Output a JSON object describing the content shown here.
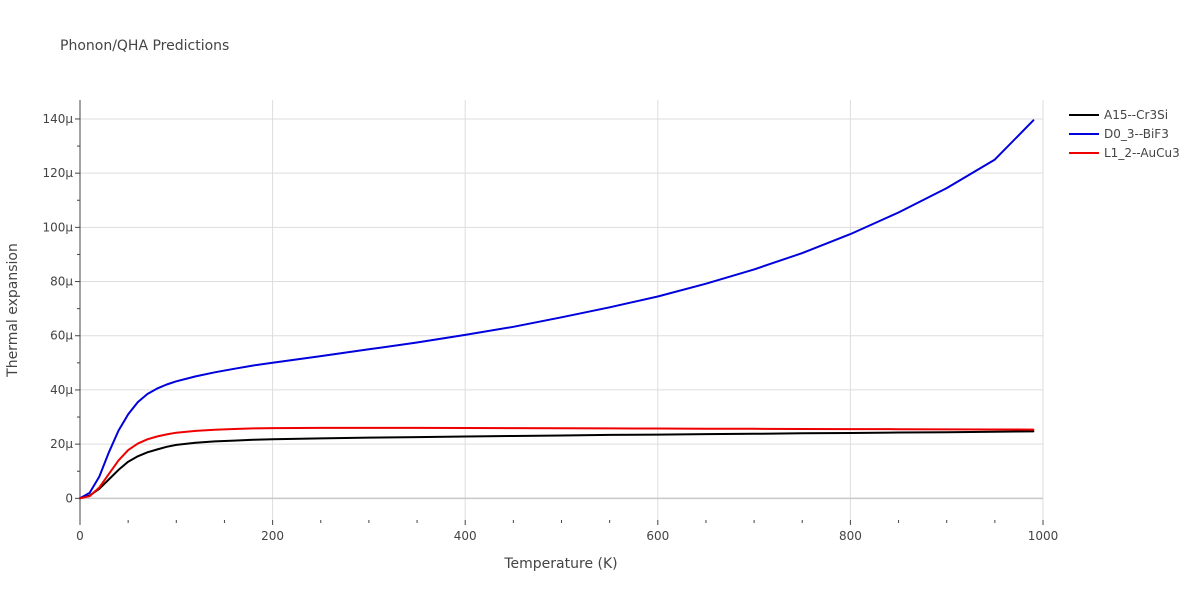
{
  "chart_data": {
    "type": "line",
    "title": "Phonon/QHA Predictions",
    "xlabel": "Temperature (K)",
    "ylabel": "Thermal expansion",
    "xlim": [
      0,
      1000
    ],
    "ylim": [
      -8,
      147
    ],
    "x_ticks": [
      0,
      200,
      400,
      600,
      800,
      1000
    ],
    "x_tick_labels": [
      "0",
      "200",
      "400",
      "600",
      "800",
      "1000"
    ],
    "y_ticks": [
      0,
      20,
      40,
      60,
      80,
      100,
      120,
      140
    ],
    "y_tick_labels": [
      "0",
      "20μ",
      "40μ",
      "60μ",
      "80μ",
      "100μ",
      "120μ",
      "140μ"
    ],
    "grid": true,
    "legend_position": "top-right",
    "series": [
      {
        "name": "A15--Cr3Si",
        "color": "#000000",
        "x": [
          0,
          10,
          20,
          30,
          40,
          50,
          60,
          70,
          80,
          90,
          100,
          120,
          140,
          160,
          180,
          200,
          250,
          300,
          350,
          400,
          450,
          500,
          550,
          600,
          650,
          700,
          750,
          800,
          850,
          900,
          950,
          990
        ],
        "y": [
          0,
          1,
          3.5,
          7,
          10.5,
          13.5,
          15.5,
          17,
          18,
          19,
          19.7,
          20.5,
          21,
          21.3,
          21.6,
          21.8,
          22.1,
          22.4,
          22.6,
          22.8,
          23,
          23.2,
          23.4,
          23.5,
          23.7,
          23.8,
          24,
          24.1,
          24.3,
          24.4,
          24.6,
          24.7
        ]
      },
      {
        "name": "D0_3--BiF3",
        "color": "#0000dd",
        "x": [
          0,
          10,
          20,
          30,
          40,
          50,
          60,
          70,
          80,
          90,
          100,
          120,
          140,
          160,
          180,
          200,
          250,
          300,
          350,
          400,
          450,
          500,
          550,
          600,
          650,
          700,
          750,
          800,
          850,
          900,
          950,
          990
        ],
        "y": [
          0,
          2,
          8,
          17,
          25,
          31,
          35.5,
          38.5,
          40.5,
          42,
          43.2,
          45,
          46.5,
          47.8,
          49,
          50,
          52.5,
          55,
          57.5,
          60.3,
          63.3,
          66.8,
          70.5,
          74.5,
          79.2,
          84.5,
          90.5,
          97.5,
          105.5,
          114.5,
          125,
          139.5
        ]
      },
      {
        "name": "L1_2--AuCu3",
        "color": "#ee0000",
        "x": [
          0,
          10,
          20,
          30,
          40,
          50,
          60,
          70,
          80,
          90,
          100,
          120,
          140,
          160,
          180,
          200,
          250,
          300,
          350,
          400,
          450,
          500,
          550,
          600,
          650,
          700,
          750,
          800,
          850,
          900,
          950,
          990
        ],
        "y": [
          0,
          0.8,
          4,
          9,
          14,
          17.8,
          20.2,
          21.8,
          22.8,
          23.6,
          24.2,
          24.9,
          25.3,
          25.6,
          25.8,
          25.9,
          26,
          26,
          26,
          25.95,
          25.9,
          25.85,
          25.8,
          25.75,
          25.7,
          25.65,
          25.6,
          25.55,
          25.5,
          25.45,
          25.4,
          25.35
        ]
      }
    ]
  }
}
